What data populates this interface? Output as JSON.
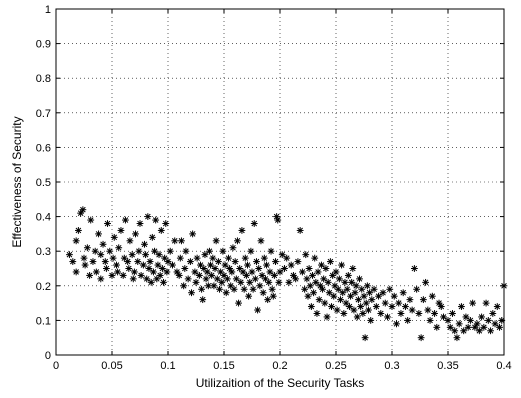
{
  "chart_data": {
    "type": "scatter",
    "xlabel": "Utilizaition of the Security Tasks",
    "ylabel": "Effectiveness of Security",
    "xlim": [
      0,
      0.4
    ],
    "ylim": [
      0,
      1
    ],
    "xticks": [
      0,
      0.05,
      0.1,
      0.15,
      0.2,
      0.25,
      0.3,
      0.35,
      0.4
    ],
    "yticks": [
      0,
      0.1,
      0.2,
      0.3,
      0.4,
      0.5,
      0.6,
      0.7,
      0.8,
      0.9,
      1
    ],
    "xtick_labels": [
      "0",
      "0.05",
      "0.1",
      "0.15",
      "0.2",
      "0.25",
      "0.3",
      "0.35",
      "0.4"
    ],
    "ytick_labels": [
      "0",
      "0.1",
      "0.2",
      "0.3",
      "0.4",
      "0.5",
      "0.6",
      "0.7",
      "0.8",
      "0.9",
      "1"
    ],
    "grid": true,
    "marker": "asterisk",
    "points": [
      [
        0.012,
        0.29
      ],
      [
        0.015,
        0.27
      ],
      [
        0.018,
        0.24
      ],
      [
        0.018,
        0.33
      ],
      [
        0.02,
        0.36
      ],
      [
        0.022,
        0.41
      ],
      [
        0.024,
        0.42
      ],
      [
        0.025,
        0.28
      ],
      [
        0.026,
        0.26
      ],
      [
        0.028,
        0.31
      ],
      [
        0.03,
        0.23
      ],
      [
        0.031,
        0.39
      ],
      [
        0.033,
        0.27
      ],
      [
        0.035,
        0.3
      ],
      [
        0.036,
        0.24
      ],
      [
        0.038,
        0.35
      ],
      [
        0.04,
        0.22
      ],
      [
        0.04,
        0.29
      ],
      [
        0.042,
        0.32
      ],
      [
        0.044,
        0.27
      ],
      [
        0.045,
        0.25
      ],
      [
        0.046,
        0.38
      ],
      [
        0.048,
        0.3
      ],
      [
        0.05,
        0.23
      ],
      [
        0.051,
        0.28
      ],
      [
        0.052,
        0.34
      ],
      [
        0.054,
        0.26
      ],
      [
        0.055,
        0.24
      ],
      [
        0.056,
        0.31
      ],
      [
        0.058,
        0.36
      ],
      [
        0.06,
        0.23
      ],
      [
        0.061,
        0.28
      ],
      [
        0.062,
        0.39
      ],
      [
        0.064,
        0.27
      ],
      [
        0.065,
        0.25
      ],
      [
        0.066,
        0.33
      ],
      [
        0.068,
        0.29
      ],
      [
        0.069,
        0.22
      ],
      [
        0.07,
        0.24
      ],
      [
        0.071,
        0.35
      ],
      [
        0.073,
        0.27
      ],
      [
        0.074,
        0.3
      ],
      [
        0.075,
        0.38
      ],
      [
        0.076,
        0.23
      ],
      [
        0.078,
        0.26
      ],
      [
        0.079,
        0.32
      ],
      [
        0.08,
        0.29
      ],
      [
        0.081,
        0.22
      ],
      [
        0.082,
        0.4
      ],
      [
        0.083,
        0.25
      ],
      [
        0.084,
        0.27
      ],
      [
        0.085,
        0.21
      ],
      [
        0.086,
        0.34
      ],
      [
        0.087,
        0.24
      ],
      [
        0.088,
        0.3
      ],
      [
        0.089,
        0.39
      ],
      [
        0.09,
        0.22
      ],
      [
        0.091,
        0.26
      ],
      [
        0.092,
        0.29
      ],
      [
        0.093,
        0.23
      ],
      [
        0.094,
        0.36
      ],
      [
        0.095,
        0.25
      ],
      [
        0.096,
        0.21
      ],
      [
        0.097,
        0.28
      ],
      [
        0.098,
        0.38
      ],
      [
        0.099,
        0.24
      ],
      [
        0.1,
        0.27
      ],
      [
        0.102,
        0.3
      ],
      [
        0.104,
        0.26
      ],
      [
        0.106,
        0.33
      ],
      [
        0.108,
        0.24
      ],
      [
        0.11,
        0.23
      ],
      [
        0.111,
        0.28
      ],
      [
        0.112,
        0.33
      ],
      [
        0.114,
        0.2
      ],
      [
        0.115,
        0.25
      ],
      [
        0.116,
        0.3
      ],
      [
        0.118,
        0.22
      ],
      [
        0.12,
        0.27
      ],
      [
        0.121,
        0.18
      ],
      [
        0.122,
        0.35
      ],
      [
        0.124,
        0.24
      ],
      [
        0.125,
        0.21
      ],
      [
        0.126,
        0.28
      ],
      [
        0.128,
        0.23
      ],
      [
        0.129,
        0.26
      ],
      [
        0.13,
        0.19
      ],
      [
        0.131,
        0.16
      ],
      [
        0.132,
        0.25
      ],
      [
        0.133,
        0.29
      ],
      [
        0.134,
        0.22
      ],
      [
        0.135,
        0.24
      ],
      [
        0.136,
        0.2
      ],
      [
        0.137,
        0.3
      ],
      [
        0.138,
        0.26
      ],
      [
        0.139,
        0.23
      ],
      [
        0.14,
        0.28
      ],
      [
        0.141,
        0.2
      ],
      [
        0.142,
        0.25
      ],
      [
        0.143,
        0.33
      ],
      [
        0.144,
        0.22
      ],
      [
        0.145,
        0.27
      ],
      [
        0.146,
        0.19
      ],
      [
        0.147,
        0.24
      ],
      [
        0.148,
        0.21
      ],
      [
        0.149,
        0.3
      ],
      [
        0.15,
        0.23
      ],
      [
        0.151,
        0.26
      ],
      [
        0.152,
        0.18
      ],
      [
        0.153,
        0.22
      ],
      [
        0.154,
        0.28
      ],
      [
        0.155,
        0.25
      ],
      [
        0.156,
        0.2
      ],
      [
        0.157,
        0.24
      ],
      [
        0.158,
        0.31
      ],
      [
        0.159,
        0.19
      ],
      [
        0.16,
        0.27
      ],
      [
        0.161,
        0.22
      ],
      [
        0.162,
        0.33
      ],
      [
        0.163,
        0.15
      ],
      [
        0.164,
        0.25
      ],
      [
        0.165,
        0.21
      ],
      [
        0.166,
        0.36
      ],
      [
        0.167,
        0.24
      ],
      [
        0.168,
        0.19
      ],
      [
        0.169,
        0.28
      ],
      [
        0.17,
        0.23
      ],
      [
        0.171,
        0.26
      ],
      [
        0.172,
        0.17
      ],
      [
        0.173,
        0.21
      ],
      [
        0.174,
        0.3
      ],
      [
        0.175,
        0.24
      ],
      [
        0.176,
        0.19
      ],
      [
        0.177,
        0.38
      ],
      [
        0.178,
        0.22
      ],
      [
        0.179,
        0.27
      ],
      [
        0.18,
        0.13
      ],
      [
        0.181,
        0.25
      ],
      [
        0.182,
        0.2
      ],
      [
        0.183,
        0.33
      ],
      [
        0.184,
        0.23
      ],
      [
        0.185,
        0.18
      ],
      [
        0.186,
        0.28
      ],
      [
        0.187,
        0.22
      ],
      [
        0.188,
        0.26
      ],
      [
        0.189,
        0.16
      ],
      [
        0.19,
        0.21
      ],
      [
        0.191,
        0.24
      ],
      [
        0.192,
        0.3
      ],
      [
        0.193,
        0.19
      ],
      [
        0.194,
        0.17
      ],
      [
        0.195,
        0.23
      ],
      [
        0.196,
        0.27
      ],
      [
        0.197,
        0.4
      ],
      [
        0.198,
        0.39
      ],
      [
        0.199,
        0.21
      ],
      [
        0.2,
        0.24
      ],
      [
        0.202,
        0.29
      ],
      [
        0.204,
        0.25
      ],
      [
        0.206,
        0.28
      ],
      [
        0.208,
        0.21
      ],
      [
        0.21,
        0.26
      ],
      [
        0.212,
        0.23
      ],
      [
        0.214,
        0.22
      ],
      [
        0.216,
        0.27
      ],
      [
        0.218,
        0.36
      ],
      [
        0.22,
        0.24
      ],
      [
        0.222,
        0.19
      ],
      [
        0.223,
        0.29
      ],
      [
        0.224,
        0.22
      ],
      [
        0.225,
        0.17
      ],
      [
        0.226,
        0.25
      ],
      [
        0.227,
        0.2
      ],
      [
        0.228,
        0.14
      ],
      [
        0.229,
        0.23
      ],
      [
        0.23,
        0.18
      ],
      [
        0.231,
        0.28
      ],
      [
        0.232,
        0.21
      ],
      [
        0.233,
        0.12
      ],
      [
        0.234,
        0.24
      ],
      [
        0.235,
        0.16
      ],
      [
        0.236,
        0.2
      ],
      [
        0.237,
        0.26
      ],
      [
        0.238,
        0.19
      ],
      [
        0.239,
        0.22
      ],
      [
        0.24,
        0.15
      ],
      [
        0.241,
        0.25
      ],
      [
        0.242,
        0.11
      ],
      [
        0.243,
        0.21
      ],
      [
        0.244,
        0.18
      ],
      [
        0.245,
        0.27
      ],
      [
        0.246,
        0.14
      ],
      [
        0.247,
        0.23
      ],
      [
        0.248,
        0.17
      ],
      [
        0.249,
        0.2
      ],
      [
        0.25,
        0.24
      ],
      [
        0.251,
        0.13
      ],
      [
        0.252,
        0.19
      ],
      [
        0.253,
        0.22
      ],
      [
        0.254,
        0.16
      ],
      [
        0.255,
        0.26
      ],
      [
        0.256,
        0.18
      ],
      [
        0.257,
        0.12
      ],
      [
        0.258,
        0.21
      ],
      [
        0.259,
        0.15
      ],
      [
        0.26,
        0.19
      ],
      [
        0.261,
        0.23
      ],
      [
        0.262,
        0.14
      ],
      [
        0.263,
        0.17
      ],
      [
        0.264,
        0.21
      ],
      [
        0.265,
        0.25
      ],
      [
        0.266,
        0.13
      ],
      [
        0.267,
        0.18
      ],
      [
        0.268,
        0.2
      ],
      [
        0.269,
        0.11
      ],
      [
        0.27,
        0.16
      ],
      [
        0.271,
        0.22
      ],
      [
        0.272,
        0.14
      ],
      [
        0.273,
        0.19
      ],
      [
        0.274,
        0.12
      ],
      [
        0.275,
        0.17
      ],
      [
        0.276,
        0.05
      ],
      [
        0.277,
        0.15
      ],
      [
        0.278,
        0.2
      ],
      [
        0.279,
        0.13
      ],
      [
        0.28,
        0.18
      ],
      [
        0.281,
        0.1
      ],
      [
        0.282,
        0.16
      ],
      [
        0.284,
        0.19
      ],
      [
        0.286,
        0.14
      ],
      [
        0.288,
        0.17
      ],
      [
        0.29,
        0.12
      ],
      [
        0.292,
        0.18
      ],
      [
        0.294,
        0.15
      ],
      [
        0.296,
        0.11
      ],
      [
        0.298,
        0.19
      ],
      [
        0.3,
        0.14
      ],
      [
        0.302,
        0.17
      ],
      [
        0.304,
        0.09
      ],
      [
        0.306,
        0.15
      ],
      [
        0.308,
        0.12
      ],
      [
        0.31,
        0.18
      ],
      [
        0.312,
        0.14
      ],
      [
        0.314,
        0.1
      ],
      [
        0.316,
        0.16
      ],
      [
        0.318,
        0.13
      ],
      [
        0.32,
        0.25
      ],
      [
        0.322,
        0.19
      ],
      [
        0.324,
        0.12
      ],
      [
        0.326,
        0.05
      ],
      [
        0.328,
        0.16
      ],
      [
        0.33,
        0.21
      ],
      [
        0.332,
        0.13
      ],
      [
        0.334,
        0.1
      ],
      [
        0.336,
        0.17
      ],
      [
        0.338,
        0.12
      ],
      [
        0.34,
        0.08
      ],
      [
        0.342,
        0.15
      ],
      [
        0.344,
        0.14
      ],
      [
        0.346,
        0.11
      ],
      [
        0.35,
        0.1
      ],
      [
        0.352,
        0.08
      ],
      [
        0.354,
        0.12
      ],
      [
        0.356,
        0.07
      ],
      [
        0.358,
        0.05
      ],
      [
        0.36,
        0.09
      ],
      [
        0.362,
        0.14
      ],
      [
        0.364,
        0.07
      ],
      [
        0.366,
        0.11
      ],
      [
        0.368,
        0.08
      ],
      [
        0.37,
        0.1
      ],
      [
        0.372,
        0.15
      ],
      [
        0.374,
        0.08
      ],
      [
        0.376,
        0.09
      ],
      [
        0.378,
        0.07
      ],
      [
        0.38,
        0.11
      ],
      [
        0.382,
        0.08
      ],
      [
        0.384,
        0.15
      ],
      [
        0.386,
        0.1
      ],
      [
        0.388,
        0.07
      ],
      [
        0.39,
        0.12
      ],
      [
        0.392,
        0.09
      ],
      [
        0.394,
        0.14
      ],
      [
        0.396,
        0.08
      ],
      [
        0.398,
        0.1
      ],
      [
        0.4,
        0.2
      ]
    ]
  }
}
